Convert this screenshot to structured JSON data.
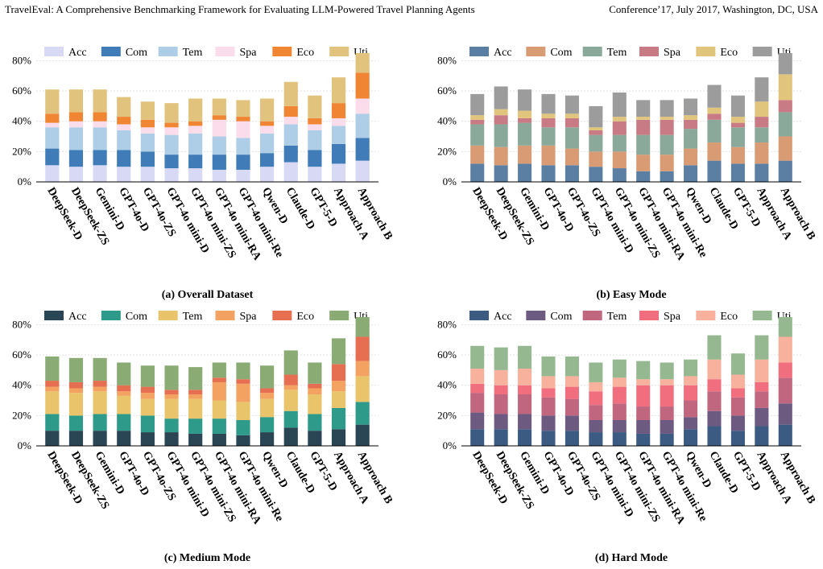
{
  "header": {
    "left": "TravelEval: A Comprehensive Benchmarking Framework for Evaluating LLM-Powered Travel Planning Agents",
    "right": "Conference’17, July 2017, Washington, DC, USA"
  },
  "chart_data": [
    {
      "type": "bar",
      "stacked": true,
      "caption": "(a) Overall Dataset",
      "categories": [
        "DeepSeek-D",
        "DeepSeek-ZS",
        "Gemini-D",
        "GPT-4o-D",
        "GPT-4o-ZS",
        "GPT-4o mini-D",
        "GPT-4o mini-ZS",
        "GPT-4o mini-RA",
        "GPT-4o mini-Re",
        "Qwen-D",
        "Claude-D",
        "GPT-5-D",
        "Approach A",
        "Approach B"
      ],
      "yticks": [
        "0%",
        "20%",
        "40%",
        "60%",
        "80%"
      ],
      "ylim": [
        0,
        85
      ],
      "grid": true,
      "legend_position": "top",
      "series": [
        {
          "name": "Acc",
          "color": "#d7d9f5",
          "values": [
            11,
            10,
            11,
            10,
            10,
            9,
            9,
            8,
            8,
            10,
            13,
            10,
            12,
            14
          ]
        },
        {
          "name": "Com",
          "color": "#3f7cb8",
          "values": [
            11,
            11,
            10,
            11,
            10,
            9,
            9,
            10,
            10,
            9,
            11,
            11,
            13,
            15
          ]
        },
        {
          "name": "Tem",
          "color": "#aecde6",
          "values": [
            14,
            15,
            15,
            13,
            12,
            13,
            14,
            12,
            11,
            13,
            14,
            13,
            12,
            16
          ]
        },
        {
          "name": "Spa",
          "color": "#fadcea",
          "values": [
            3,
            4,
            4,
            4,
            4,
            5,
            5,
            11,
            11,
            5,
            5,
            4,
            5,
            10
          ]
        },
        {
          "name": "Eco",
          "color": "#f08534",
          "values": [
            6,
            6,
            6,
            5,
            5,
            3,
            3,
            3,
            3,
            3,
            7,
            4,
            10,
            17
          ]
        },
        {
          "name": "Uti",
          "color": "#e2c37e",
          "values": [
            16,
            15,
            15,
            13,
            12,
            13,
            15,
            11,
            11,
            15,
            16,
            15,
            17,
            13
          ]
        }
      ]
    },
    {
      "type": "bar",
      "stacked": true,
      "caption": "(b) Easy Mode",
      "categories": [
        "DeepSeek-D",
        "DeepSeek-ZS",
        "Gemini-D",
        "GPT-4o-D",
        "GPT-4o-ZS",
        "GPT-4o mini-D",
        "GPT-4o mini-ZS",
        "GPT-4o mini-RA",
        "GPT-4o mini-Re",
        "Qwen-D",
        "Claude-D",
        "GPT-5-D",
        "Approach A",
        "Approach B"
      ],
      "yticks": [
        "0%",
        "20%",
        "40%",
        "60%",
        "80%"
      ],
      "ylim": [
        0,
        85
      ],
      "grid": true,
      "legend_position": "top",
      "series": [
        {
          "name": "Acc",
          "color": "#5a7fa3",
          "values": [
            12,
            11,
            12,
            11,
            11,
            10,
            9,
            7,
            7,
            11,
            14,
            12,
            12,
            14
          ]
        },
        {
          "name": "Com",
          "color": "#d99b73",
          "values": [
            12,
            12,
            12,
            13,
            11,
            10,
            11,
            11,
            11,
            11,
            12,
            11,
            14,
            16
          ]
        },
        {
          "name": "Tem",
          "color": "#8aa99a",
          "values": [
            14,
            15,
            15,
            12,
            14,
            11,
            11,
            13,
            13,
            13,
            15,
            13,
            10,
            16
          ]
        },
        {
          "name": "Spa",
          "color": "#c97b85",
          "values": [
            3,
            6,
            3,
            6,
            6,
            3,
            9,
            10,
            10,
            6,
            4,
            3,
            7,
            8
          ]
        },
        {
          "name": "Eco",
          "color": "#e2c57c",
          "values": [
            3,
            4,
            5,
            3,
            3,
            2,
            3,
            2,
            2,
            3,
            4,
            4,
            10,
            17
          ]
        },
        {
          "name": "Uti",
          "color": "#9c9c9c",
          "values": [
            14,
            15,
            14,
            13,
            12,
            14,
            16,
            11,
            11,
            11,
            15,
            14,
            16,
            14
          ]
        }
      ]
    },
    {
      "type": "bar",
      "stacked": true,
      "caption": "(c) Medium Mode",
      "categories": [
        "DeepSeek-D",
        "DeepSeek-ZS",
        "Gemini-D",
        "GPT-4o-D",
        "GPT-4o-ZS",
        "GPT-4o mini-D",
        "GPT-4o mini-ZS",
        "GPT-4o mini-RA",
        "GPT-4o mini-Re",
        "Qwen-D",
        "Claude-D",
        "GPT-5-D",
        "Approach A",
        "Approach B"
      ],
      "yticks": [
        "0%",
        "20%",
        "40%",
        "60%",
        "80%"
      ],
      "ylim": [
        0,
        85
      ],
      "grid": true,
      "legend_position": "top",
      "series": [
        {
          "name": "Acc",
          "color": "#2a4654",
          "values": [
            10,
            10,
            10,
            10,
            9,
            9,
            8,
            8,
            7,
            9,
            12,
            10,
            11,
            14
          ]
        },
        {
          "name": "Com",
          "color": "#2e9a8a",
          "values": [
            11,
            10,
            11,
            11,
            11,
            9,
            10,
            10,
            10,
            10,
            11,
            11,
            14,
            15
          ]
        },
        {
          "name": "Tem",
          "color": "#e9c46a",
          "values": [
            15,
            15,
            15,
            12,
            11,
            13,
            13,
            12,
            12,
            12,
            14,
            13,
            11,
            17
          ]
        },
        {
          "name": "Spa",
          "color": "#f4a261",
          "values": [
            3,
            3,
            3,
            3,
            4,
            3,
            3,
            12,
            12,
            4,
            3,
            4,
            7,
            10
          ]
        },
        {
          "name": "Eco",
          "color": "#e76f51",
          "values": [
            4,
            4,
            4,
            4,
            4,
            3,
            3,
            3,
            3,
            3,
            7,
            3,
            11,
            16
          ]
        },
        {
          "name": "Uti",
          "color": "#8aab74",
          "values": [
            16,
            16,
            15,
            15,
            14,
            16,
            15,
            10,
            11,
            15,
            16,
            14,
            17,
            13
          ]
        }
      ]
    },
    {
      "type": "bar",
      "stacked": true,
      "caption": "(d) Hard Mode",
      "categories": [
        "DeepSeek-D",
        "DeepSeek-ZS",
        "Gemini-D",
        "GPT-4o-D",
        "GPT-4o-ZS",
        "GPT-4o mini-D",
        "GPT-4o mini-ZS",
        "GPT-4o mini-RA",
        "GPT-4o mini-Re",
        "Qwen-D",
        "Claude-D",
        "GPT-5-D",
        "Approach A",
        "Approach B"
      ],
      "yticks": [
        "0%",
        "20%",
        "40%",
        "60%",
        "80%"
      ],
      "ylim": [
        0,
        85
      ],
      "grid": true,
      "legend_position": "top",
      "series": [
        {
          "name": "Acc",
          "color": "#3b5b82",
          "values": [
            11,
            11,
            11,
            10,
            10,
            9,
            9,
            8,
            8,
            11,
            13,
            10,
            13,
            14
          ]
        },
        {
          "name": "Com",
          "color": "#6d5a80",
          "values": [
            11,
            10,
            10,
            10,
            10,
            8,
            8,
            9,
            9,
            8,
            10,
            10,
            12,
            14
          ]
        },
        {
          "name": "Tem",
          "color": "#c0677f",
          "values": [
            13,
            13,
            13,
            12,
            11,
            10,
            11,
            9,
            9,
            11,
            13,
            12,
            11,
            17
          ]
        },
        {
          "name": "Spa",
          "color": "#f06e7e",
          "values": [
            6,
            6,
            6,
            6,
            8,
            9,
            11,
            14,
            14,
            10,
            8,
            6,
            6,
            10
          ]
        },
        {
          "name": "Eco",
          "color": "#f7b19c",
          "values": [
            10,
            10,
            11,
            8,
            7,
            6,
            6,
            4,
            4,
            6,
            13,
            9,
            15,
            17
          ]
        },
        {
          "name": "Uti",
          "color": "#96b891",
          "values": [
            15,
            15,
            15,
            13,
            13,
            13,
            12,
            12,
            11,
            11,
            16,
            14,
            16,
            13
          ]
        }
      ]
    }
  ]
}
